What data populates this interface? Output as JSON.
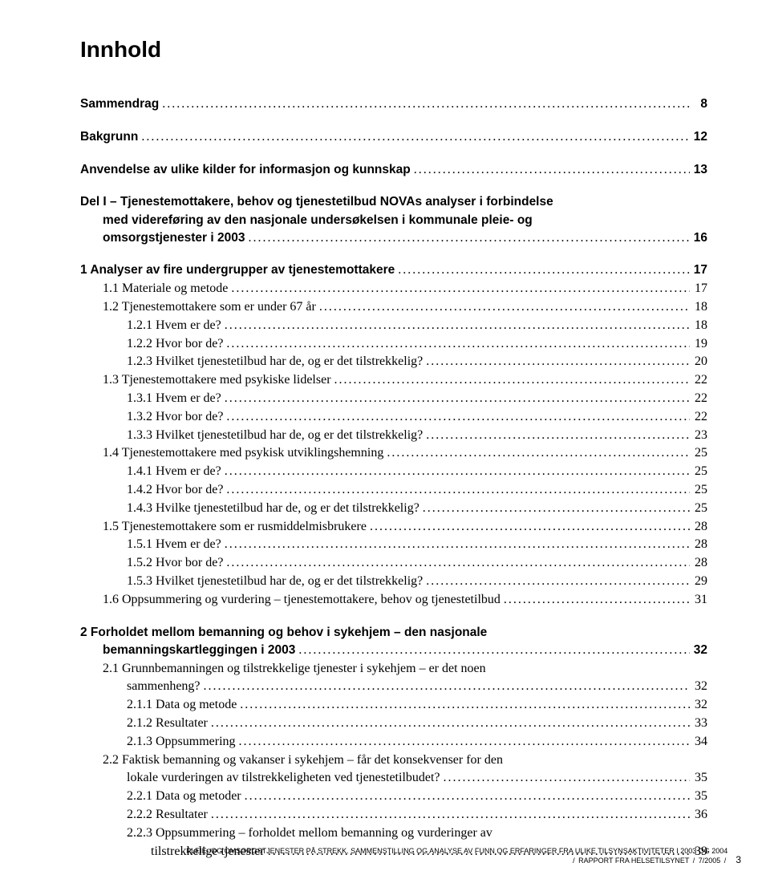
{
  "title": "Innhold",
  "toc": [
    {
      "level": "bold",
      "indent": 0,
      "label": "Sammendrag",
      "page": "8",
      "gap": "lg"
    },
    {
      "level": "bold",
      "indent": 0,
      "label": "Bakgrunn",
      "page": "12",
      "gap": "lg"
    },
    {
      "level": "bold",
      "indent": 0,
      "label": "Anvendelse av ulike kilder for informasjon og kunnskap",
      "page": "13",
      "gap": "lg"
    },
    {
      "level": "bold",
      "indent": 0,
      "label": "Del I – Tjenestemottakere, behov og tjenestetilbud NOVAs analyser i forbindelse",
      "page": "",
      "gap": "lg",
      "nodots": true
    },
    {
      "level": "bold-cont",
      "indent": 1,
      "label": "med videreføring av den nasjonale undersøkelsen i kommunale pleie- og",
      "page": "",
      "nodots": true
    },
    {
      "level": "bold",
      "indent": 1,
      "label": "omsorgstjenester i 2003",
      "page": "16",
      "contclass": "bold-cont"
    },
    {
      "level": "bold",
      "indent": 0,
      "label": "1  Analyser av fire undergrupper av tjenestemottakere",
      "page": "17",
      "gap": "lg"
    },
    {
      "level": "serif",
      "indent": 1,
      "label": "1.1 Materiale og metode",
      "page": "17"
    },
    {
      "level": "serif",
      "indent": 1,
      "label": "1.2 Tjenestemottakere som er under 67 år",
      "page": "18"
    },
    {
      "level": "serif",
      "indent": 2,
      "label": "1.2.1 Hvem er de?",
      "page": "18"
    },
    {
      "level": "serif",
      "indent": 2,
      "label": "1.2.2 Hvor bor de?",
      "page": "19"
    },
    {
      "level": "serif",
      "indent": 2,
      "label": "1.2.3 Hvilket tjenestetilbud har de, og er det tilstrekkelig?",
      "page": "20"
    },
    {
      "level": "serif",
      "indent": 1,
      "label": "1.3 Tjenestemottakere med psykiske lidelser",
      "page": "22"
    },
    {
      "level": "serif",
      "indent": 2,
      "label": "1.3.1 Hvem er de?",
      "page": "22"
    },
    {
      "level": "serif",
      "indent": 2,
      "label": "1.3.2 Hvor bor de?",
      "page": "22"
    },
    {
      "level": "serif",
      "indent": 2,
      "label": "1.3.3 Hvilket tjenestetilbud har de, og er det tilstrekkelig?",
      "page": "23"
    },
    {
      "level": "serif",
      "indent": 1,
      "label": "1.4 Tjenestemottakere med psykisk utviklingshemning",
      "page": "25"
    },
    {
      "level": "serif",
      "indent": 2,
      "label": "1.4.1 Hvem er de?",
      "page": "25"
    },
    {
      "level": "serif",
      "indent": 2,
      "label": "1.4.2 Hvor bor de?",
      "page": "25"
    },
    {
      "level": "serif",
      "indent": 2,
      "label": "1.4.3 Hvilke tjenestetilbud har de, og er det tilstrekkelig?",
      "page": "25"
    },
    {
      "level": "serif",
      "indent": 1,
      "label": "1.5 Tjenestemottakere som er rusmiddelmisbrukere",
      "page": "28"
    },
    {
      "level": "serif",
      "indent": 2,
      "label": "1.5.1 Hvem er de?",
      "page": "28"
    },
    {
      "level": "serif",
      "indent": 2,
      "label": "1.5.2 Hvor bor de?",
      "page": "28"
    },
    {
      "level": "serif",
      "indent": 2,
      "label": "1.5.3 Hvilket tjenestetilbud har de, og er det tilstrekkelig?",
      "page": "29"
    },
    {
      "level": "serif",
      "indent": 1,
      "label": "1.6 Oppsummering og vurdering – tjenestemottakere, behov og tjenestetilbud",
      "page": "31"
    },
    {
      "level": "bold",
      "indent": 0,
      "label": "2  Forholdet mellom bemanning og behov i sykehjem – den nasjonale",
      "page": "",
      "gap": "lg",
      "nodots": true
    },
    {
      "level": "bold",
      "indent": 1,
      "label": "bemanningskartleggingen i 2003",
      "page": "32",
      "contclass": "bold-cont"
    },
    {
      "level": "serif",
      "indent": 1,
      "label": "2.1 Grunnbemanningen og tilstrekkelige tjenester i sykehjem – er det noen",
      "page": "",
      "nodots": true
    },
    {
      "level": "serif",
      "indent": 2,
      "label": "sammenheng?",
      "page": "32",
      "contclass": "continuation"
    },
    {
      "level": "serif",
      "indent": 2,
      "label": "2.1.1 Data og metode",
      "page": "32"
    },
    {
      "level": "serif",
      "indent": 2,
      "label": "2.1.2 Resultater",
      "page": "33"
    },
    {
      "level": "serif",
      "indent": 2,
      "label": "2.1.3 Oppsummering",
      "page": "34"
    },
    {
      "level": "serif",
      "indent": 1,
      "label": "2.2 Faktisk bemanning og vakanser i sykehjem – får det konsekvenser for den",
      "page": "",
      "nodots": true
    },
    {
      "level": "serif",
      "indent": 2,
      "label": "lokale vurderingen av tilstrekkeligheten ved tjenestetilbudet?",
      "page": "35",
      "contclass": "continuation"
    },
    {
      "level": "serif",
      "indent": 2,
      "label": "2.2.1 Data og metoder",
      "page": "35"
    },
    {
      "level": "serif",
      "indent": 2,
      "label": "2.2.2 Resultater",
      "page": "36"
    },
    {
      "level": "serif",
      "indent": 2,
      "label": "2.2.3 Oppsummering – forholdet mellom bemanning og vurderinger av",
      "page": "",
      "nodots": true
    },
    {
      "level": "serif",
      "indent": 2,
      "label": "tilstrekkelige tjenester",
      "page": "39",
      "contind": 3
    }
  ],
  "footer": {
    "line1": "PLEIE- OG OMSORGSTJENESTER PÅ STREKK. SAMMENSTILLING OG ANALYSE AV FUNN OG ERFARINGER FRA ULIKE TILSYNSAKTIVITETER I 2003 OG 2004",
    "line2a": "RAPPORT FRA HELSETILSYNET",
    "line2b": "7/2005",
    "page": "3"
  }
}
